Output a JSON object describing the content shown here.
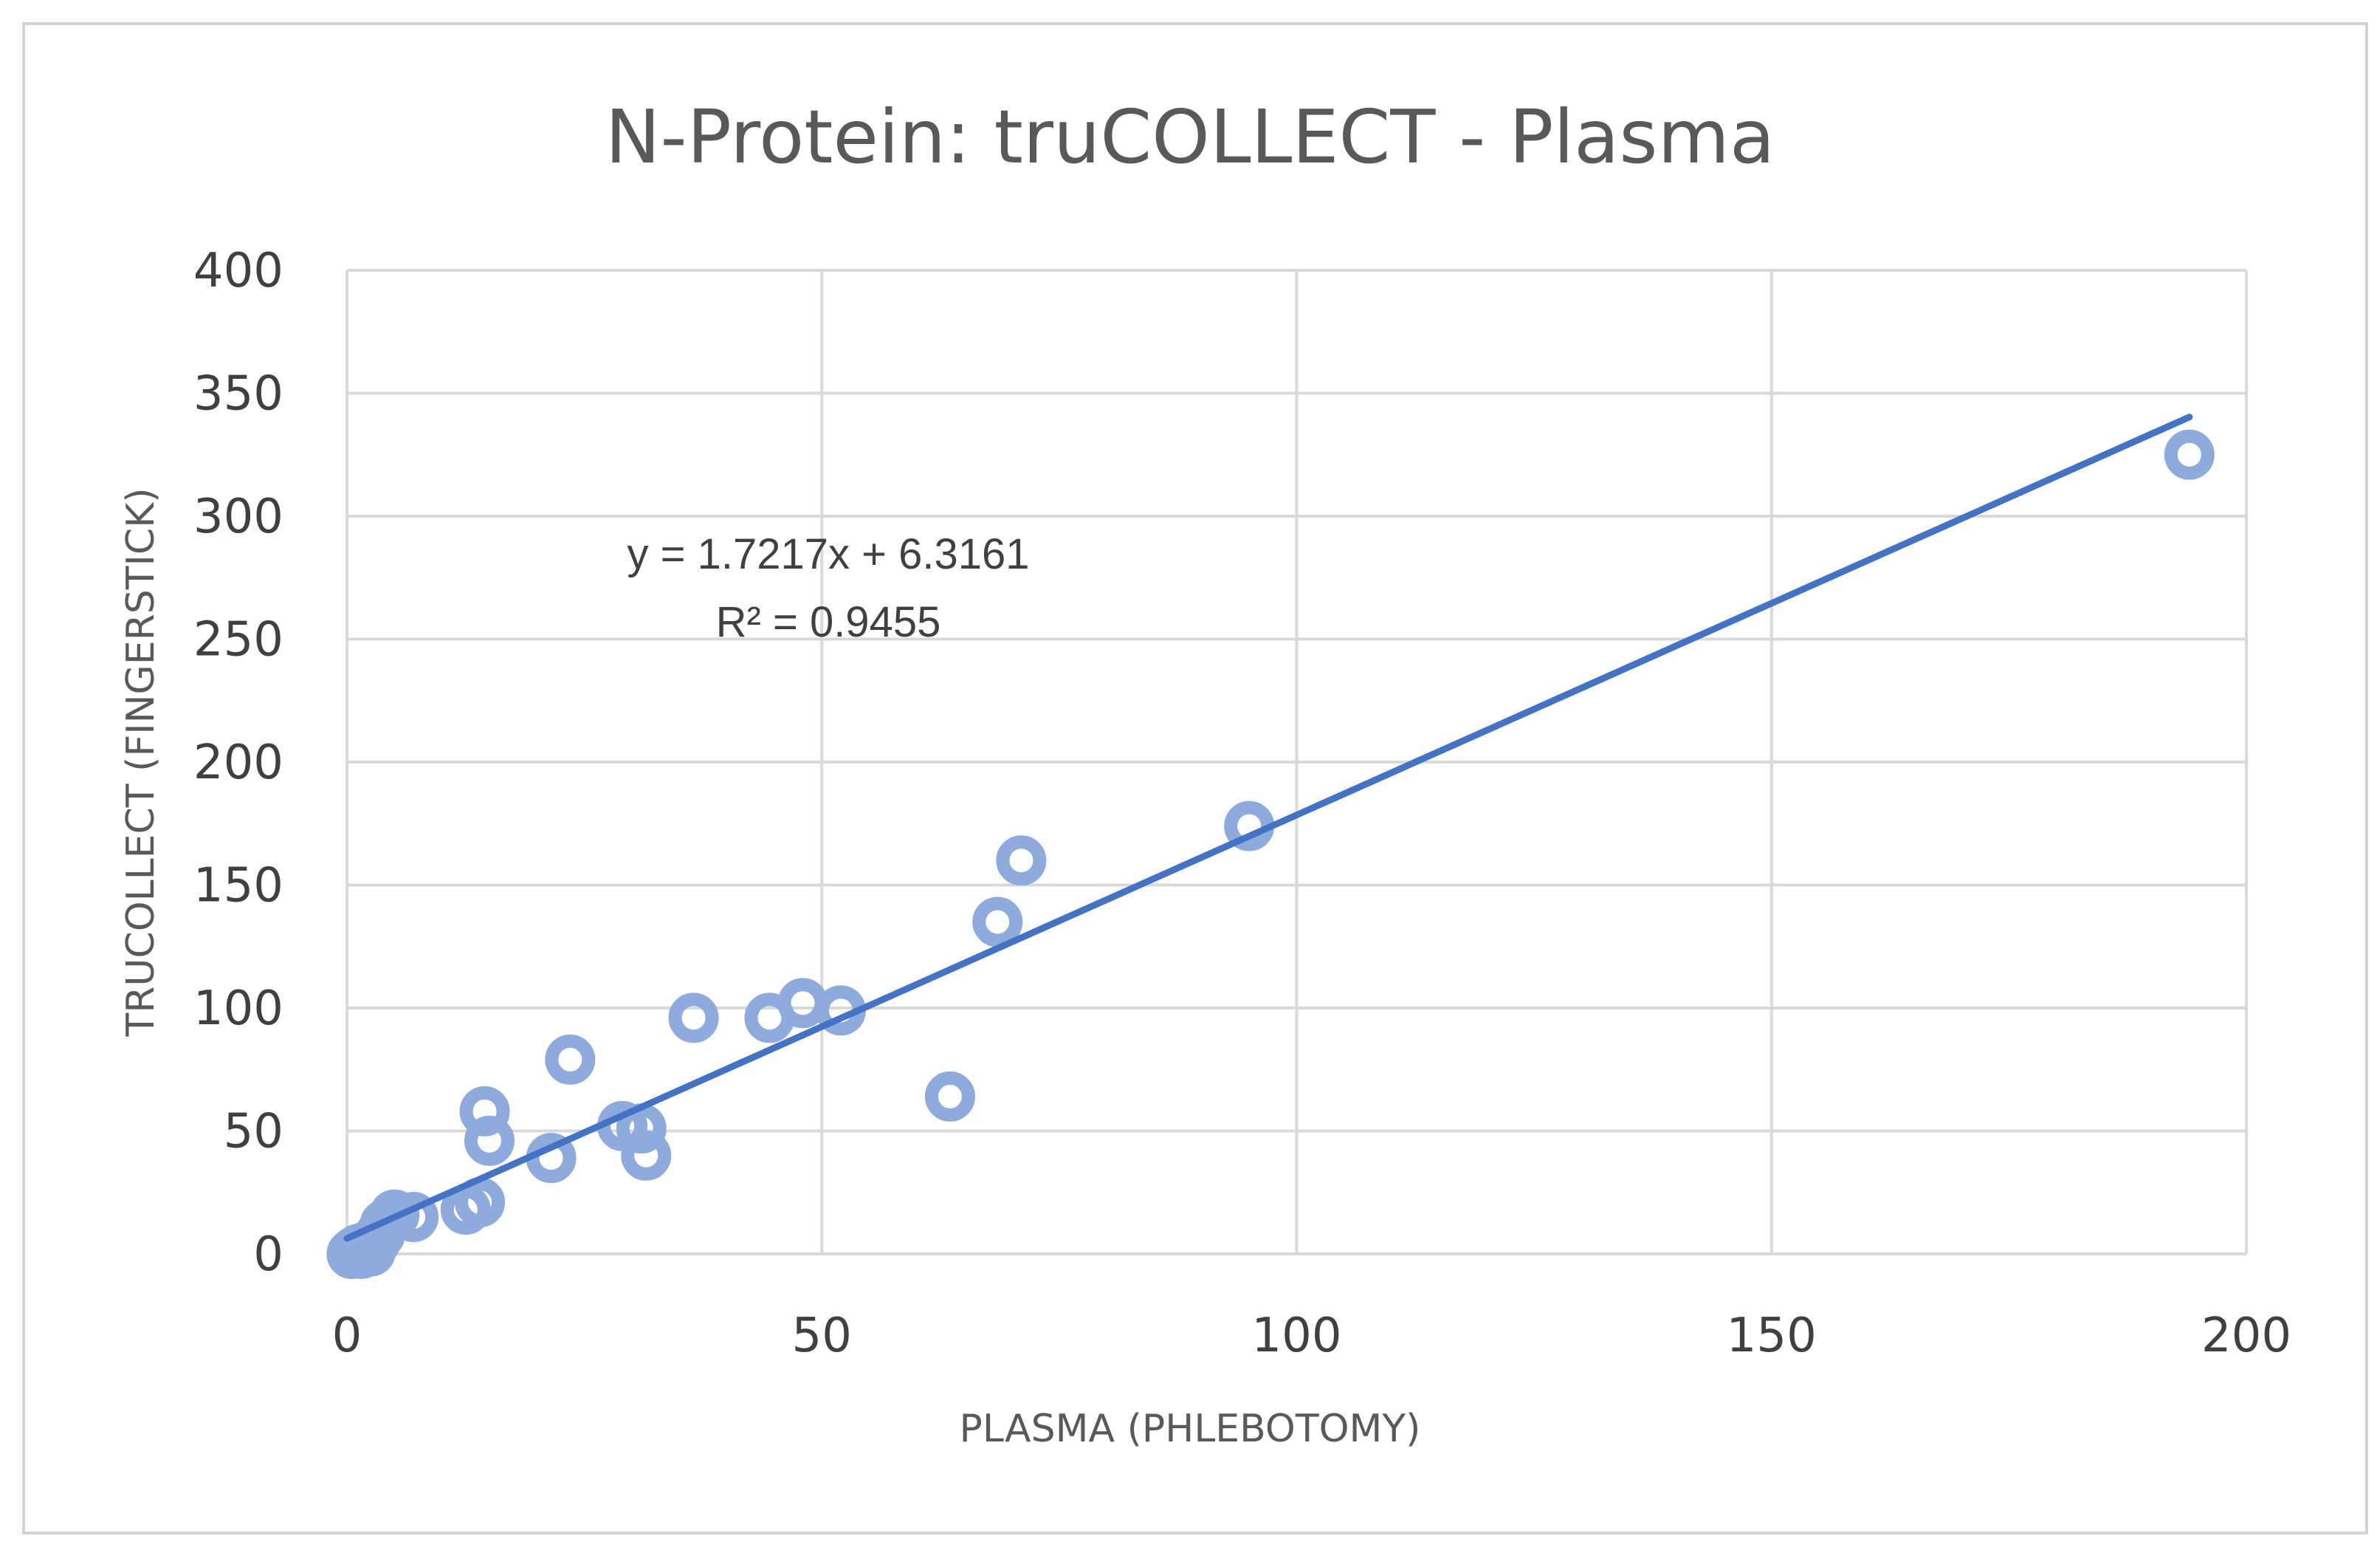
{
  "chart_data": {
    "type": "scatter",
    "title": "N-Protein:  truCOLLECT - Plasma",
    "xlabel": "PLASMA (PHLEBOTOMY)",
    "ylabel": "TRUCOLLECT (FINGERSTICK)",
    "xlim": [
      0,
      200
    ],
    "ylim": [
      0,
      400
    ],
    "xticks": [
      0,
      50,
      100,
      150,
      200
    ],
    "yticks": [
      0,
      50,
      100,
      150,
      200,
      250,
      300,
      350,
      400
    ],
    "grid": true,
    "marker_color": "#8faadc",
    "trendline_color": "#4472c4",
    "gridline_color": "#d9d9d9",
    "series": [
      {
        "name": "N-Protein",
        "points": [
          [
            0.5,
            0
          ],
          [
            0.8,
            1
          ],
          [
            1,
            0.5
          ],
          [
            1.2,
            2
          ],
          [
            1.5,
            0
          ],
          [
            2,
            3
          ],
          [
            2.5,
            1
          ],
          [
            3,
            5
          ],
          [
            3.5,
            8
          ],
          [
            4,
            12
          ],
          [
            5,
            16
          ],
          [
            7,
            15
          ],
          [
            12.5,
            18
          ],
          [
            14,
            21
          ],
          [
            14.5,
            58
          ],
          [
            15,
            46
          ],
          [
            21.5,
            39
          ],
          [
            23.5,
            79
          ],
          [
            29,
            52
          ],
          [
            31,
            51
          ],
          [
            31.5,
            40
          ],
          [
            36.5,
            96
          ],
          [
            44.5,
            96
          ],
          [
            48,
            102
          ],
          [
            52,
            99
          ],
          [
            63.5,
            64
          ],
          [
            68.5,
            135
          ],
          [
            71,
            160
          ],
          [
            95,
            174
          ],
          [
            194,
            325
          ]
        ]
      }
    ],
    "trendline": {
      "slope": 1.7217,
      "intercept": 6.3161,
      "x_range": [
        0,
        194
      ],
      "equation": "y = 1.7217x + 6.3161",
      "r2": "R² = 0.9455"
    }
  }
}
